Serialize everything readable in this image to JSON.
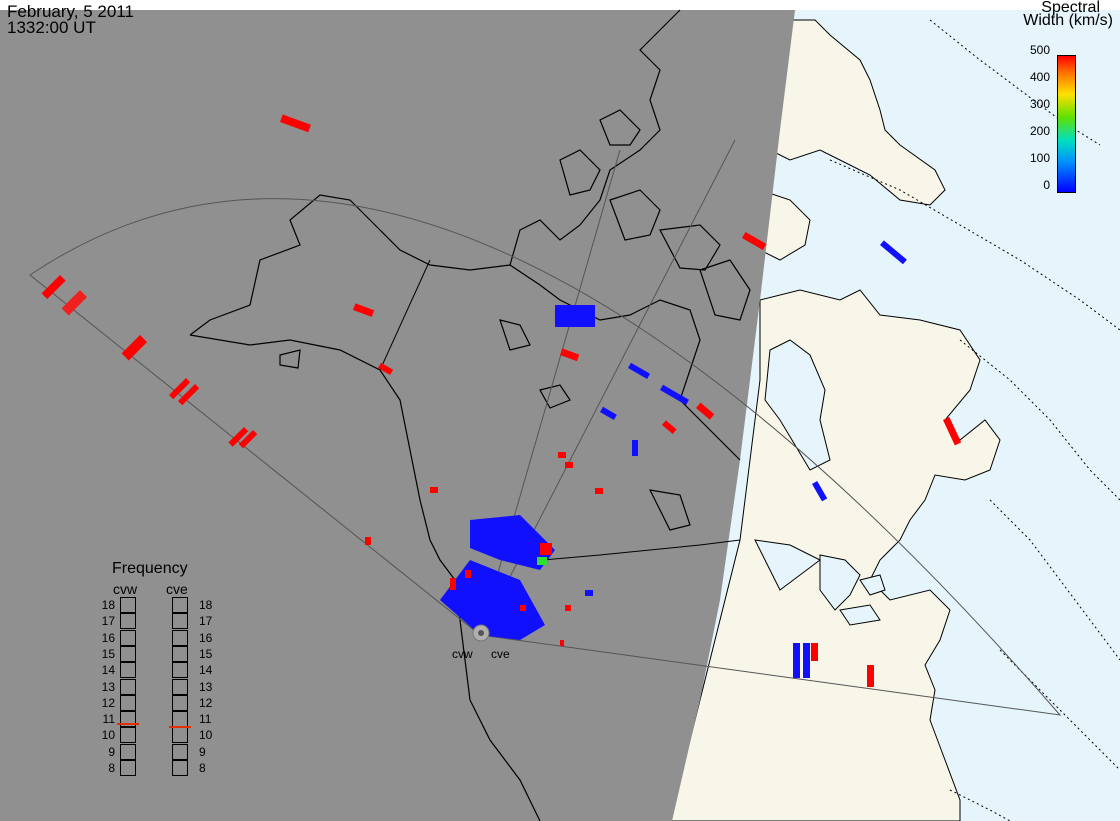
{
  "header": {
    "date": "February, 5 2011",
    "time": "1332:00 UT"
  },
  "colorbar": {
    "title_line1": "Spectral",
    "title_line2": "Width (km/s)",
    "ticks": [
      "500",
      "400",
      "300",
      "200",
      "100",
      "0"
    ],
    "colors": [
      "#ff0000",
      "#ff7000",
      "#ffe000",
      "#60e000",
      "#00e0c0",
      "#0090ff",
      "#0000ff"
    ]
  },
  "frequency_panel": {
    "title": "Frequency",
    "radar_left": "cvw",
    "radar_right": "cve",
    "levels": [
      "18",
      "17",
      "16",
      "15",
      "14",
      "13",
      "12",
      "11",
      "10",
      "9",
      "8"
    ],
    "selected": {
      "cvw": 10.8,
      "cve": 10.6
    }
  },
  "radars": [
    {
      "code": "cvw",
      "label": "cvw"
    },
    {
      "code": "cve",
      "label": "cve"
    }
  ],
  "map": {
    "night_color": "#909090",
    "land_color": "#f8f6e8",
    "ocean_color": "#e6f4fc",
    "coast_color": "#000000"
  }
}
